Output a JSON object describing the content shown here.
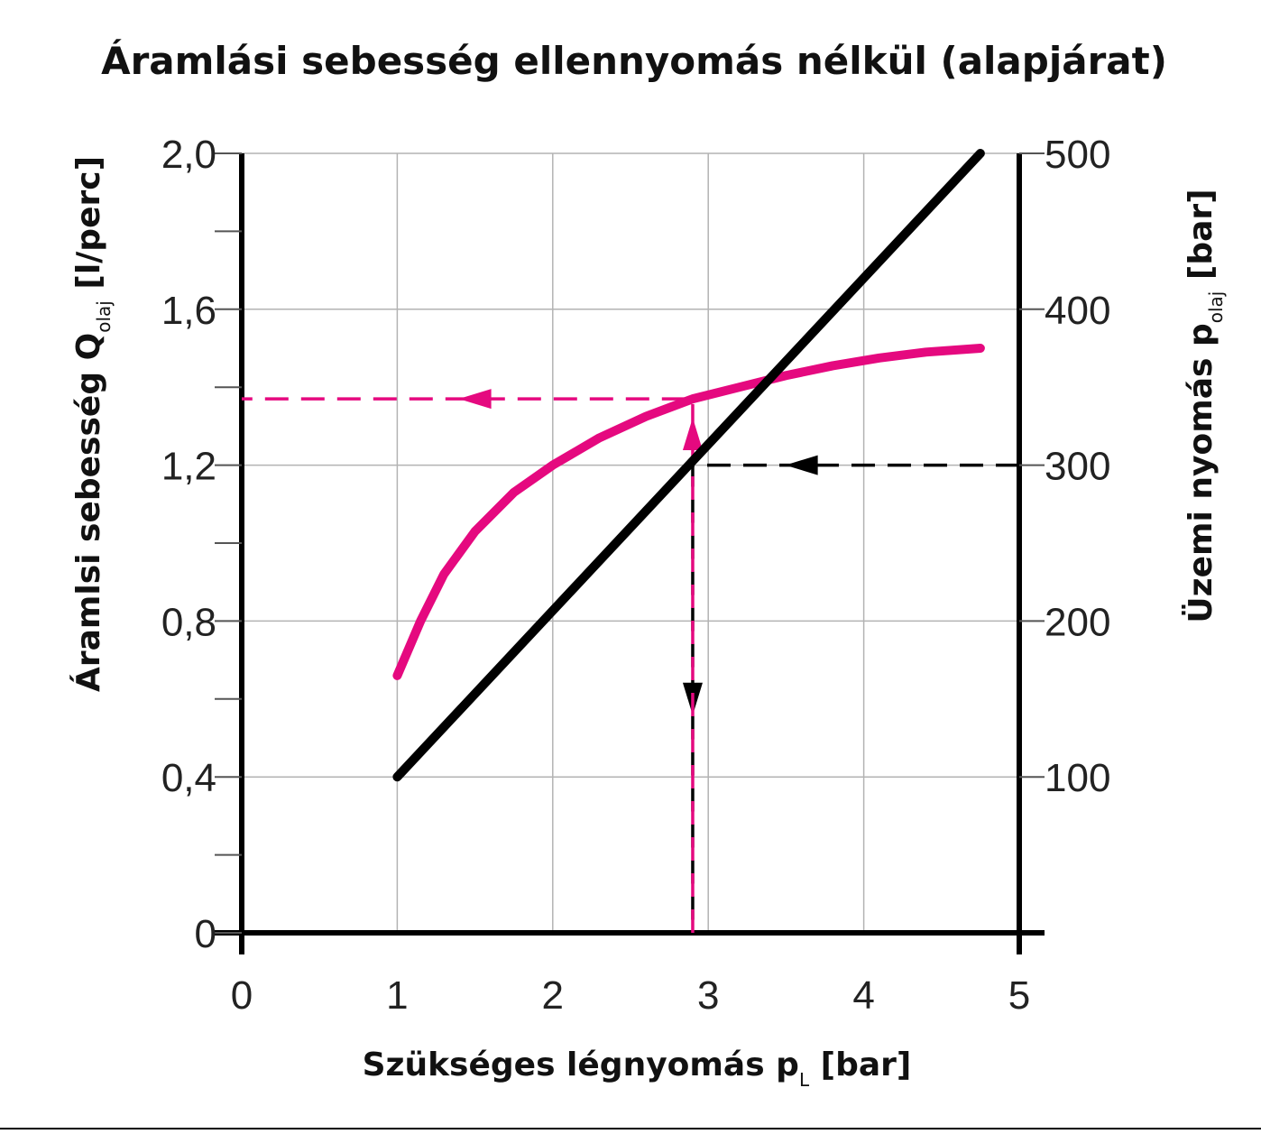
{
  "chart_data": {
    "type": "line",
    "title": "Áramlási sebesség ellennyomás nélkül (alapjárat)",
    "xlabel": {
      "main": "Szükséges légnyomás p",
      "sub": "L",
      "unit": " [bar]"
    },
    "ylabel": {
      "main": "Áramlsi sebesség Q",
      "sub": "olaj",
      "unit": " [l/perc]"
    },
    "y2label": {
      "main": "Üzemi nyomás p",
      "sub": "olaj",
      "unit": " [bar]"
    },
    "xlim": [
      0,
      5
    ],
    "ylim": [
      0,
      2.0
    ],
    "y2lim": [
      0,
      500
    ],
    "x_ticks": [
      0,
      1,
      2,
      3,
      4,
      5
    ],
    "x_tick_labels": [
      "0",
      "1",
      "2",
      "3",
      "4",
      "5"
    ],
    "y_ticks": [
      0,
      0.4,
      0.8,
      1.2,
      1.6,
      2.0
    ],
    "y_tick_labels": [
      "0",
      "0,4",
      "0,8",
      "1,2",
      "1,6",
      "2,0"
    ],
    "y2_ticks": [
      100,
      200,
      300,
      400,
      500
    ],
    "y2_tick_labels": [
      "100",
      "200",
      "300",
      "400",
      "500"
    ],
    "grid": true,
    "series": [
      {
        "axis": "left",
        "color": "#e5097f",
        "x": [
          1.0,
          1.15,
          1.3,
          1.5,
          1.75,
          2.0,
          2.3,
          2.6,
          2.9,
          3.2,
          3.5,
          3.8,
          4.1,
          4.4,
          4.75
        ],
        "y": [
          0.66,
          0.8,
          0.92,
          1.03,
          1.13,
          1.2,
          1.27,
          1.325,
          1.37,
          1.4,
          1.43,
          1.455,
          1.475,
          1.49,
          1.5
        ]
      },
      {
        "axis": "right",
        "color": "#000000",
        "x": [
          1.0,
          4.75
        ],
        "y": [
          100,
          500
        ]
      }
    ],
    "guides": [
      {
        "color": "#000000",
        "axis": "right",
        "points": [
          [
            5.0,
            300
          ],
          [
            2.9,
            300
          ],
          [
            2.9,
            0
          ]
        ],
        "arrow_at": [
          [
            3.6,
            300,
            "left"
          ],
          [
            2.9,
            150,
            "down"
          ]
        ]
      },
      {
        "color": "#e5097f",
        "axis": "left",
        "points": [
          [
            2.9,
            0
          ],
          [
            2.9,
            1.37
          ],
          [
            0,
            1.37
          ]
        ],
        "arrow_at": [
          [
            2.9,
            1.28,
            "up"
          ],
          [
            1.5,
            1.37,
            "left"
          ]
        ]
      }
    ]
  }
}
